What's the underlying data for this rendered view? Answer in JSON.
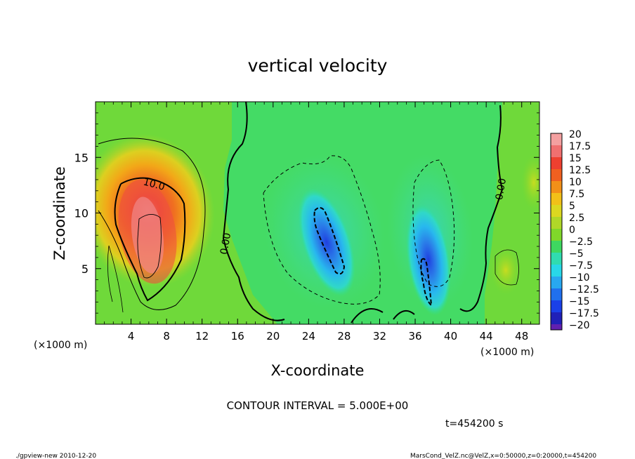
{
  "chart_data": {
    "type": "heatmap",
    "title": "vertical velocity",
    "xlabel": "X-coordinate",
    "ylabel": "Z-coordinate",
    "x_unit": "(×1000 m)",
    "y_unit": "(×1000 m)",
    "xlim": [
      0,
      50
    ],
    "ylim": [
      0,
      20
    ],
    "x_ticks": [
      4,
      8,
      12,
      16,
      20,
      24,
      28,
      32,
      36,
      40,
      44,
      48
    ],
    "y_ticks": [
      5,
      10,
      15
    ],
    "colorbar": {
      "labels": [
        "20",
        "17.5",
        "15",
        "12.5",
        "10",
        "7.5",
        "5",
        "2.5",
        "0",
        "−2.5",
        "−5",
        "−7.5",
        "−10",
        "−12.5",
        "−15",
        "−17.5",
        "−20"
      ],
      "levels": [
        20,
        17.5,
        15,
        12.5,
        10,
        7.5,
        5,
        2.5,
        0,
        -2.5,
        -5,
        -7.5,
        -10,
        -12.5,
        -15,
        -17.5,
        -20
      ]
    },
    "contour_labels": [
      {
        "text": "10.0",
        "x": 6.5,
        "z": 12.3
      },
      {
        "text": "0.00",
        "x": 15,
        "z": 7.2
      },
      {
        "text": "0.00",
        "x": 46,
        "z": 12.1
      }
    ],
    "features": [
      {
        "name": "updraft",
        "x": 6.3,
        "z": 7.5,
        "peak": 20
      },
      {
        "name": "downdraft",
        "x": 26,
        "z": 7.5,
        "peak": -13
      },
      {
        "name": "downdraft",
        "x": 37.5,
        "z": 4,
        "peak": -12
      }
    ]
  },
  "footer": {
    "contour_interval": "CONTOUR INTERVAL = 5.000E+00",
    "time": "t=454200 s",
    "program": "./gpview-new  2010-12-20",
    "source": "MarsCond_VelZ.nc@VelZ,x=0:50000,z=0:20000,t=454200"
  }
}
